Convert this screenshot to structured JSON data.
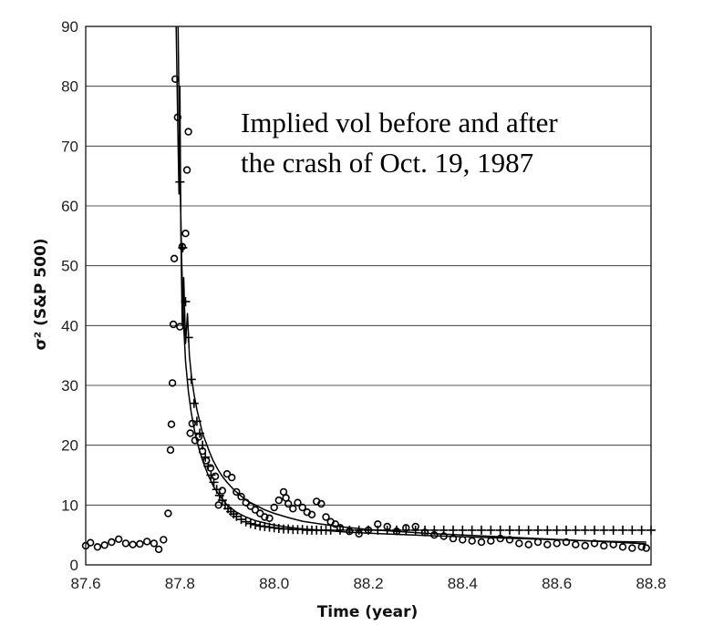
{
  "chart_data": {
    "type": "scatter",
    "title": "",
    "annotation_lines": [
      "Implied vol before and after",
      "the crash of Oct. 19, 1987"
    ],
    "xlabel": "Time (year)",
    "ylabel": "σ² (S&P 500)",
    "xlim": [
      87.6,
      88.8
    ],
    "ylim": [
      0,
      90
    ],
    "xticks": [
      "87.6",
      "87.8",
      "88.0",
      "88.2",
      "88.4",
      "88.6",
      "88.8"
    ],
    "yticks": [
      "0",
      "10",
      "20",
      "30",
      "40",
      "50",
      "60",
      "70",
      "80",
      "90"
    ],
    "grid": "horizontal",
    "series": [
      {
        "marker": "circle",
        "x": [
          87.6,
          87.61,
          87.625,
          87.64,
          87.655,
          87.67,
          87.685,
          87.7,
          87.715,
          87.73,
          87.745,
          87.755,
          87.765,
          87.775,
          87.78,
          87.782,
          87.784,
          87.786,
          87.788,
          87.79,
          87.795,
          87.8,
          87.805,
          87.812,
          87.815,
          87.818,
          87.822,
          87.826,
          87.832,
          87.84,
          87.848,
          87.856,
          87.865,
          87.875,
          87.882,
          87.89,
          87.9,
          87.91,
          87.92,
          87.93,
          87.94,
          87.95,
          87.96,
          87.97,
          87.98,
          87.99,
          88.0,
          88.01,
          88.02,
          88.025,
          88.03,
          88.04,
          88.05,
          88.06,
          88.07,
          88.08,
          88.09,
          88.1,
          88.11,
          88.12,
          88.13,
          88.14,
          88.16,
          88.18,
          88.2,
          88.22,
          88.24,
          88.26,
          88.28,
          88.3,
          88.32,
          88.34,
          88.36,
          88.38,
          88.4,
          88.42,
          88.44,
          88.46,
          88.48,
          88.5,
          88.52,
          88.54,
          88.56,
          88.58,
          88.6,
          88.62,
          88.64,
          88.66,
          88.68,
          88.7,
          88.72,
          88.74,
          88.76,
          88.78,
          88.79
        ],
        "y": [
          3.2,
          3.7,
          3.0,
          3.3,
          3.8,
          4.3,
          3.6,
          3.4,
          3.5,
          3.9,
          3.6,
          2.6,
          4.2,
          8.6,
          19.2,
          23.5,
          30.4,
          40.2,
          51.2,
          81.2,
          74.8,
          39.8,
          53.2,
          55.4,
          66.0,
          72.4,
          22.0,
          23.6,
          20.8,
          21.4,
          19.0,
          17.4,
          16.2,
          14.8,
          10.0,
          12.4,
          15.2,
          14.6,
          12.2,
          11.4,
          10.4,
          9.8,
          9.2,
          8.6,
          8.0,
          7.8,
          9.6,
          10.8,
          12.2,
          11.2,
          10.2,
          9.4,
          10.4,
          9.6,
          8.8,
          8.4,
          10.6,
          10.2,
          8.0,
          7.2,
          6.8,
          6.2,
          5.6,
          5.2,
          5.8,
          6.8,
          6.4,
          5.6,
          6.2,
          6.4,
          5.4,
          5.0,
          4.8,
          4.4,
          4.2,
          4.0,
          3.8,
          4.0,
          4.4,
          4.2,
          3.6,
          3.4,
          3.8,
          3.4,
          3.6,
          3.8,
          3.4,
          3.2,
          3.6,
          3.2,
          3.4,
          3.0,
          2.8,
          3.0,
          2.8
        ]
      },
      {
        "marker": "plus",
        "x": [
          87.8,
          87.806,
          87.812,
          87.818,
          87.824,
          87.83,
          87.836,
          87.842,
          87.848,
          87.854,
          87.86,
          87.866,
          87.872,
          87.878,
          87.884,
          87.89,
          87.896,
          87.902,
          87.908,
          87.914,
          87.92,
          87.93,
          87.94,
          87.95,
          87.96,
          87.97,
          87.98,
          87.99,
          88.0,
          88.01,
          88.02,
          88.03,
          88.04,
          88.05,
          88.06,
          88.07,
          88.08,
          88.09,
          88.1,
          88.11,
          88.12,
          88.14,
          88.16,
          88.18,
          88.2,
          88.22,
          88.24,
          88.26,
          88.28,
          88.3,
          88.32,
          88.34,
          88.36,
          88.38,
          88.4,
          88.42,
          88.44,
          88.46,
          88.48,
          88.5,
          88.52,
          88.54,
          88.56,
          88.58,
          88.6,
          88.62,
          88.64,
          88.66,
          88.68,
          88.7,
          88.72,
          88.74,
          88.76,
          88.78,
          88.8
        ],
        "y": [
          64.0,
          53.0,
          44.0,
          38.0,
          31.0,
          27.0,
          24.0,
          22.0,
          20.0,
          18.0,
          16.5,
          15.0,
          13.8,
          12.6,
          11.6,
          10.8,
          10.0,
          9.4,
          8.9,
          8.5,
          8.1,
          7.6,
          7.2,
          6.9,
          6.7,
          6.5,
          6.4,
          6.3,
          6.2,
          6.1,
          6.0,
          6.0,
          5.9,
          5.9,
          5.9,
          5.8,
          5.8,
          5.8,
          5.8,
          5.8,
          5.8,
          5.8,
          5.8,
          5.8,
          5.8,
          5.8,
          5.8,
          5.8,
          5.8,
          5.8,
          5.8,
          5.8,
          5.8,
          5.8,
          5.8,
          5.8,
          5.8,
          5.8,
          5.8,
          5.8,
          5.8,
          5.8,
          5.8,
          5.8,
          5.8,
          5.8,
          5.8,
          5.8,
          5.8,
          5.8,
          5.8,
          5.8,
          5.8,
          5.8,
          5.8
        ]
      },
      {
        "marker": "line",
        "x": [
          87.792,
          87.795,
          87.798,
          87.8,
          87.802,
          87.805,
          87.808,
          87.812,
          87.816,
          87.82,
          87.825,
          87.83,
          87.836,
          87.842,
          87.848,
          87.855,
          87.862,
          87.87,
          87.88,
          87.89,
          87.9,
          87.915,
          87.93,
          87.945,
          87.96,
          87.98,
          88.0,
          88.03,
          88.06,
          88.1,
          88.15,
          88.2,
          88.26,
          88.32,
          88.4,
          88.48,
          88.56,
          88.64,
          88.72,
          88.79
        ],
        "y": [
          90.0,
          75.0,
          62.0,
          80.0,
          55.0,
          40.0,
          48.0,
          37.0,
          42.0,
          35.0,
          31.0,
          28.5,
          26.0,
          24.0,
          22.0,
          20.5,
          19.0,
          17.5,
          16.0,
          14.8,
          13.8,
          12.5,
          11.5,
          10.6,
          10.0,
          9.2,
          8.6,
          7.9,
          7.3,
          6.8,
          6.3,
          5.9,
          5.6,
          5.3,
          5.0,
          4.7,
          4.4,
          4.1,
          3.8,
          3.5
        ]
      },
      {
        "marker": "line",
        "x": [
          87.796,
          87.8,
          87.804,
          87.808,
          87.812,
          87.818,
          87.824,
          87.832,
          87.84,
          87.85,
          87.86,
          87.872,
          87.885,
          87.9,
          87.92,
          87.94,
          87.96,
          87.99,
          88.02,
          88.06,
          88.1,
          88.15,
          88.2,
          88.26,
          88.32,
          88.4,
          88.48,
          88.56,
          88.64,
          88.72,
          88.79
        ],
        "y": [
          90.0,
          66.0,
          50.0,
          40.0,
          34.0,
          29.0,
          25.5,
          22.0,
          19.5,
          17.0,
          15.0,
          13.0,
          11.5,
          10.0,
          8.8,
          8.0,
          7.4,
          6.8,
          6.4,
          6.0,
          5.8,
          5.5,
          5.3,
          5.1,
          4.9,
          4.7,
          4.5,
          4.3,
          4.1,
          3.9,
          3.8
        ]
      }
    ]
  }
}
